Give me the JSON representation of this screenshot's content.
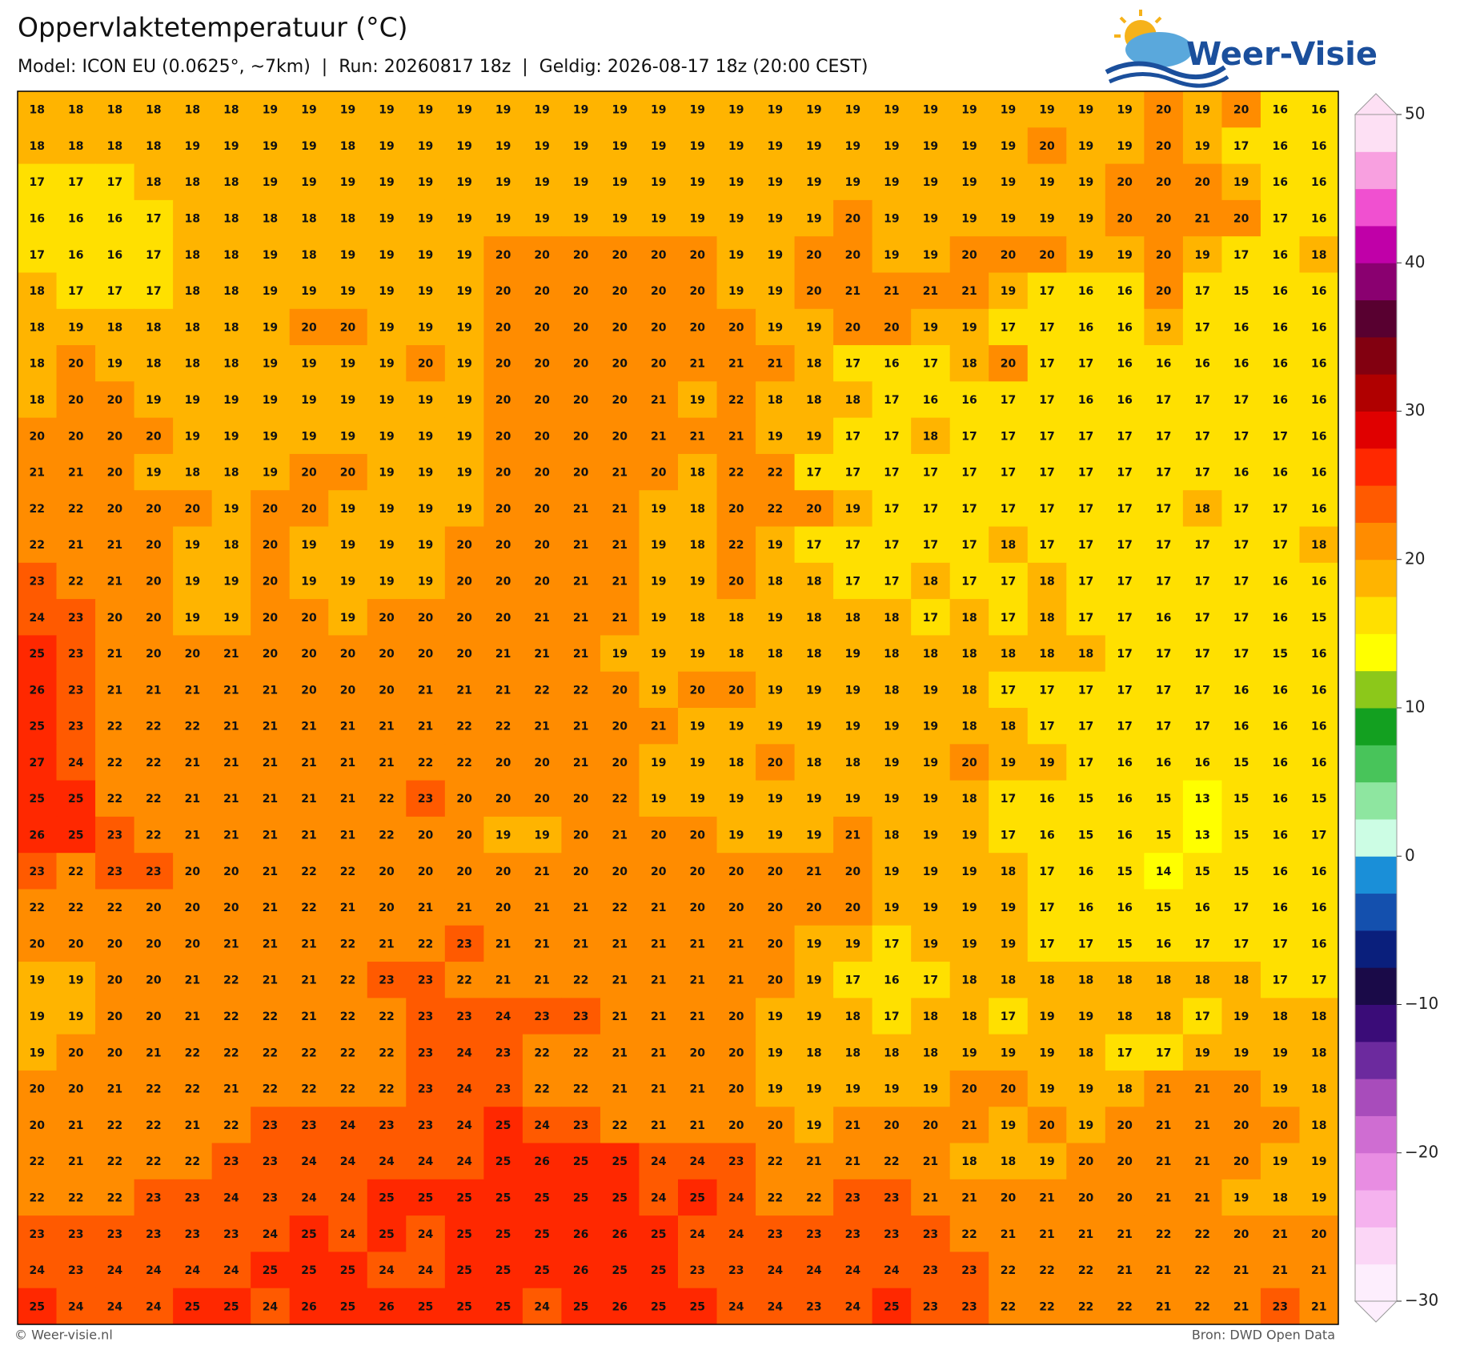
{
  "header": {
    "title": "Oppervlaktetemperatuur (°C)",
    "subtitle": "Model: ICON EU (0.0625°, ~7km)  |  Run: 20260817 18z  |  Geldig: 2026-08-17 18z (20:00 CEST)"
  },
  "logo": {
    "text": "Weer-Visie"
  },
  "map": {
    "values": [
      [
        18,
        18,
        18,
        18,
        18,
        18,
        19,
        19,
        19,
        19,
        19,
        19,
        19,
        19,
        19,
        19,
        19,
        19,
        19,
        19,
        19,
        19,
        19,
        19,
        19,
        19,
        19,
        19,
        19,
        20,
        19,
        20,
        16,
        16
      ],
      [
        18,
        18,
        18,
        18,
        19,
        19,
        19,
        19,
        18,
        19,
        19,
        19,
        19,
        19,
        19,
        19,
        19,
        19,
        19,
        19,
        19,
        19,
        19,
        19,
        19,
        19,
        20,
        19,
        19,
        20,
        19,
        17,
        16,
        16
      ],
      [
        17,
        17,
        17,
        18,
        18,
        18,
        19,
        19,
        19,
        19,
        19,
        19,
        19,
        19,
        19,
        19,
        19,
        19,
        19,
        19,
        19,
        19,
        19,
        19,
        19,
        19,
        19,
        19,
        20,
        20,
        20,
        19,
        16,
        16
      ],
      [
        16,
        16,
        16,
        17,
        18,
        18,
        18,
        18,
        18,
        19,
        19,
        19,
        19,
        19,
        19,
        19,
        19,
        19,
        19,
        19,
        19,
        20,
        19,
        19,
        19,
        19,
        19,
        19,
        20,
        20,
        21,
        20,
        17,
        16
      ],
      [
        17,
        16,
        16,
        17,
        18,
        18,
        19,
        18,
        19,
        19,
        19,
        19,
        20,
        20,
        20,
        20,
        20,
        20,
        19,
        19,
        20,
        20,
        19,
        19,
        20,
        20,
        20,
        19,
        19,
        20,
        19,
        17,
        16,
        18
      ],
      [
        18,
        17,
        17,
        17,
        18,
        18,
        19,
        19,
        19,
        19,
        19,
        19,
        20,
        20,
        20,
        20,
        20,
        20,
        19,
        19,
        20,
        21,
        21,
        21,
        21,
        19,
        17,
        16,
        16,
        20,
        17,
        15,
        16,
        16
      ],
      [
        18,
        19,
        18,
        18,
        18,
        18,
        19,
        20,
        20,
        19,
        19,
        19,
        20,
        20,
        20,
        20,
        20,
        20,
        20,
        19,
        19,
        20,
        20,
        19,
        19,
        17,
        17,
        16,
        16,
        19,
        17,
        16,
        16,
        16
      ],
      [
        18,
        20,
        19,
        18,
        18,
        18,
        19,
        19,
        19,
        19,
        20,
        19,
        20,
        20,
        20,
        20,
        20,
        21,
        21,
        21,
        18,
        17,
        16,
        17,
        18,
        20,
        17,
        17,
        16,
        16,
        16,
        16,
        16,
        16
      ],
      [
        18,
        20,
        20,
        19,
        19,
        19,
        19,
        19,
        19,
        19,
        19,
        19,
        20,
        20,
        20,
        20,
        21,
        19,
        22,
        18,
        18,
        18,
        17,
        16,
        16,
        17,
        17,
        16,
        16,
        17,
        17,
        17,
        16,
        16
      ],
      [
        20,
        20,
        20,
        20,
        19,
        19,
        19,
        19,
        19,
        19,
        19,
        19,
        20,
        20,
        20,
        20,
        21,
        21,
        21,
        19,
        19,
        17,
        17,
        18,
        17,
        17,
        17,
        17,
        17,
        17,
        17,
        17,
        17,
        16
      ],
      [
        21,
        21,
        20,
        19,
        18,
        18,
        19,
        20,
        20,
        19,
        19,
        19,
        20,
        20,
        20,
        21,
        20,
        18,
        22,
        22,
        17,
        17,
        17,
        17,
        17,
        17,
        17,
        17,
        17,
        17,
        17,
        16,
        16,
        16
      ],
      [
        22,
        22,
        20,
        20,
        20,
        19,
        20,
        20,
        19,
        19,
        19,
        19,
        20,
        20,
        21,
        21,
        19,
        18,
        20,
        22,
        20,
        19,
        17,
        17,
        17,
        17,
        17,
        17,
        17,
        17,
        18,
        17,
        17,
        16
      ],
      [
        22,
        21,
        21,
        20,
        19,
        18,
        20,
        19,
        19,
        19,
        19,
        20,
        20,
        20,
        21,
        21,
        19,
        18,
        22,
        19,
        17,
        17,
        17,
        17,
        17,
        18,
        17,
        17,
        17,
        17,
        17,
        17,
        17,
        18
      ],
      [
        23,
        22,
        21,
        20,
        19,
        19,
        20,
        19,
        19,
        19,
        19,
        20,
        20,
        20,
        21,
        21,
        19,
        19,
        20,
        18,
        18,
        17,
        17,
        18,
        17,
        17,
        18,
        17,
        17,
        17,
        17,
        17,
        16,
        16
      ],
      [
        24,
        23,
        20,
        20,
        19,
        19,
        20,
        20,
        19,
        20,
        20,
        20,
        20,
        21,
        21,
        21,
        19,
        18,
        18,
        19,
        18,
        18,
        18,
        17,
        18,
        17,
        18,
        17,
        17,
        16,
        17,
        17,
        16,
        15
      ],
      [
        25,
        23,
        21,
        20,
        20,
        21,
        20,
        20,
        20,
        20,
        20,
        20,
        21,
        21,
        21,
        19,
        19,
        19,
        18,
        18,
        18,
        19,
        18,
        18,
        18,
        18,
        18,
        18,
        17,
        17,
        17,
        17,
        15,
        16
      ],
      [
        26,
        23,
        21,
        21,
        21,
        21,
        21,
        20,
        20,
        20,
        21,
        21,
        21,
        22,
        22,
        20,
        19,
        20,
        20,
        19,
        19,
        19,
        18,
        19,
        18,
        17,
        17,
        17,
        17,
        17,
        17,
        16,
        16,
        16
      ],
      [
        25,
        23,
        22,
        22,
        22,
        21,
        21,
        21,
        21,
        21,
        21,
        22,
        22,
        21,
        21,
        20,
        21,
        19,
        19,
        19,
        19,
        19,
        19,
        19,
        18,
        18,
        17,
        17,
        17,
        17,
        17,
        16,
        16,
        16
      ],
      [
        27,
        24,
        22,
        22,
        21,
        21,
        21,
        21,
        21,
        21,
        22,
        22,
        20,
        20,
        21,
        20,
        19,
        19,
        18,
        20,
        18,
        18,
        19,
        19,
        20,
        19,
        19,
        17,
        16,
        16,
        16,
        15,
        16,
        16
      ],
      [
        25,
        25,
        22,
        22,
        21,
        21,
        21,
        21,
        21,
        22,
        23,
        20,
        20,
        20,
        20,
        22,
        19,
        19,
        19,
        19,
        19,
        19,
        19,
        19,
        18,
        17,
        16,
        15,
        16,
        15,
        13,
        15,
        16,
        15
      ],
      [
        26,
        25,
        23,
        22,
        21,
        21,
        21,
        21,
        21,
        22,
        20,
        20,
        19,
        19,
        20,
        21,
        20,
        20,
        19,
        19,
        19,
        21,
        18,
        19,
        19,
        17,
        16,
        15,
        16,
        15,
        13,
        15,
        16,
        17
      ],
      [
        23,
        22,
        23,
        23,
        20,
        20,
        21,
        22,
        22,
        20,
        20,
        20,
        20,
        21,
        20,
        20,
        20,
        20,
        20,
        20,
        21,
        20,
        19,
        19,
        19,
        18,
        17,
        16,
        15,
        14,
        15,
        15,
        16,
        16
      ],
      [
        22,
        22,
        22,
        20,
        20,
        20,
        21,
        22,
        21,
        20,
        21,
        21,
        20,
        21,
        21,
        22,
        21,
        20,
        20,
        20,
        20,
        20,
        19,
        19,
        19,
        19,
        17,
        16,
        16,
        15,
        16,
        17,
        16,
        16
      ],
      [
        20,
        20,
        20,
        20,
        20,
        21,
        21,
        21,
        22,
        21,
        22,
        23,
        21,
        21,
        21,
        21,
        21,
        21,
        21,
        20,
        19,
        19,
        17,
        19,
        19,
        19,
        17,
        17,
        15,
        16,
        17,
        17,
        17,
        16
      ],
      [
        19,
        19,
        20,
        20,
        21,
        22,
        21,
        21,
        22,
        23,
        23,
        22,
        21,
        21,
        22,
        21,
        21,
        21,
        21,
        20,
        19,
        17,
        16,
        17,
        18,
        18,
        18,
        18,
        18,
        18,
        18,
        18,
        17,
        17
      ],
      [
        19,
        19,
        20,
        20,
        21,
        22,
        22,
        21,
        22,
        22,
        23,
        23,
        24,
        23,
        23,
        21,
        21,
        21,
        20,
        19,
        19,
        18,
        17,
        18,
        18,
        17,
        19,
        19,
        18,
        18,
        17,
        19,
        18,
        18
      ],
      [
        19,
        20,
        20,
        21,
        22,
        22,
        22,
        22,
        22,
        22,
        23,
        24,
        23,
        22,
        22,
        21,
        21,
        20,
        20,
        19,
        18,
        18,
        18,
        18,
        19,
        19,
        19,
        18,
        17,
        17,
        19,
        19,
        19,
        18
      ],
      [
        20,
        20,
        21,
        22,
        22,
        21,
        22,
        22,
        22,
        22,
        23,
        24,
        23,
        22,
        22,
        21,
        21,
        21,
        20,
        19,
        19,
        19,
        19,
        19,
        20,
        20,
        19,
        19,
        18,
        21,
        21,
        20,
        19,
        18
      ],
      [
        20,
        21,
        22,
        22,
        21,
        22,
        23,
        23,
        24,
        23,
        23,
        24,
        25,
        24,
        23,
        22,
        21,
        21,
        20,
        20,
        19,
        21,
        20,
        20,
        21,
        19,
        20,
        19,
        20,
        21,
        21,
        20,
        20,
        18
      ],
      [
        22,
        21,
        22,
        22,
        22,
        23,
        23,
        24,
        24,
        24,
        24,
        24,
        25,
        26,
        25,
        25,
        24,
        24,
        23,
        22,
        21,
        21,
        22,
        21,
        18,
        18,
        19,
        20,
        20,
        21,
        21,
        20,
        19,
        19
      ],
      [
        22,
        22,
        22,
        23,
        23,
        24,
        23,
        24,
        24,
        25,
        25,
        25,
        25,
        25,
        25,
        25,
        24,
        25,
        24,
        22,
        22,
        23,
        23,
        21,
        21,
        20,
        21,
        20,
        20,
        21,
        21,
        19,
        18,
        19
      ],
      [
        23,
        23,
        23,
        23,
        23,
        23,
        24,
        25,
        24,
        25,
        24,
        25,
        25,
        25,
        26,
        26,
        25,
        24,
        24,
        23,
        23,
        23,
        23,
        23,
        22,
        21,
        21,
        21,
        21,
        22,
        22,
        20,
        21,
        20
      ],
      [
        24,
        23,
        24,
        24,
        24,
        24,
        25,
        25,
        25,
        24,
        24,
        25,
        25,
        25,
        26,
        25,
        25,
        23,
        23,
        24,
        24,
        24,
        24,
        23,
        23,
        22,
        22,
        22,
        21,
        21,
        22,
        21,
        21,
        21
      ],
      [
        25,
        24,
        24,
        24,
        25,
        25,
        24,
        26,
        25,
        26,
        25,
        25,
        25,
        24,
        25,
        26,
        25,
        25,
        24,
        24,
        23,
        24,
        25,
        23,
        23,
        22,
        22,
        22,
        22,
        21,
        22,
        21,
        23,
        21
      ]
    ]
  },
  "colorbar": {
    "lim": [
      -30,
      50
    ],
    "ticks": [
      50,
      40,
      30,
      20,
      10,
      0,
      {
        "value": -10,
        "label": "−10"
      },
      {
        "value": -20,
        "label": "−20"
      },
      {
        "value": -30,
        "label": "−30"
      }
    ],
    "colors": [
      "#fdeefd",
      "#fbd6f6",
      "#f5b2ee",
      "#e88de2",
      "#cf6dd2",
      "#a84cbb",
      "#6c2a9e",
      "#3a0c78",
      "#1a0a48",
      "#0a1f7c",
      "#1450ae",
      "#1a8fd8",
      "#ccfde4",
      "#8ee6a0",
      "#48c45a",
      "#13a020",
      "#8cc81a",
      "#ffff00",
      "#ffe000",
      "#ffb400",
      "#ff8c00",
      "#ff5a00",
      "#ff2800",
      "#e00000",
      "#b00000",
      "#820010",
      "#580030",
      "#8a0070",
      "#c000a8",
      "#f050d0",
      "#f8a0e0",
      "#fde0f4"
    ]
  },
  "footer": {
    "left": "© Weer-visie.nl",
    "right": "Bron: DWD Open Data"
  }
}
